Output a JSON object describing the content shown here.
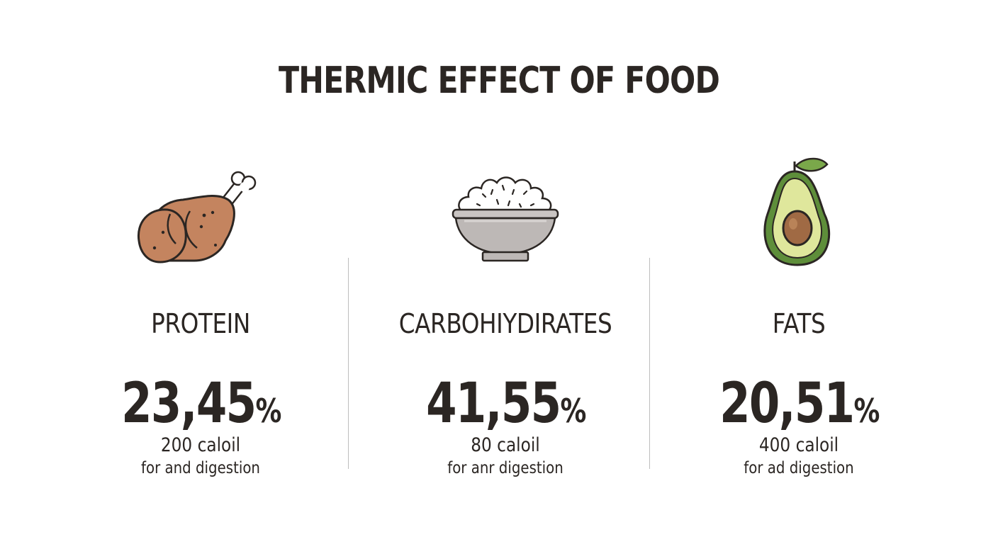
{
  "title": "THERMIC EFFECT OF FOOD",
  "columns": [
    {
      "label": "PROTEIN",
      "percent": "23,45",
      "percent_sign": "%",
      "calories": "200 caloil",
      "description": "for and digestion",
      "icon": "chicken-drumstick-icon",
      "color": "#c4845f"
    },
    {
      "label": "CARBOHIYDIRATES",
      "percent": "41,55",
      "percent_sign": "%",
      "calories": "80 caloil",
      "description": "for anr digestion",
      "icon": "rice-bowl-icon",
      "color": "#bdb8b6"
    },
    {
      "label": "FATS",
      "percent": "20,51",
      "percent_sign": "%",
      "calories": "400 caloil",
      "description": "for ad digestion",
      "icon": "avocado-icon",
      "color": "#7aa84a"
    }
  ]
}
